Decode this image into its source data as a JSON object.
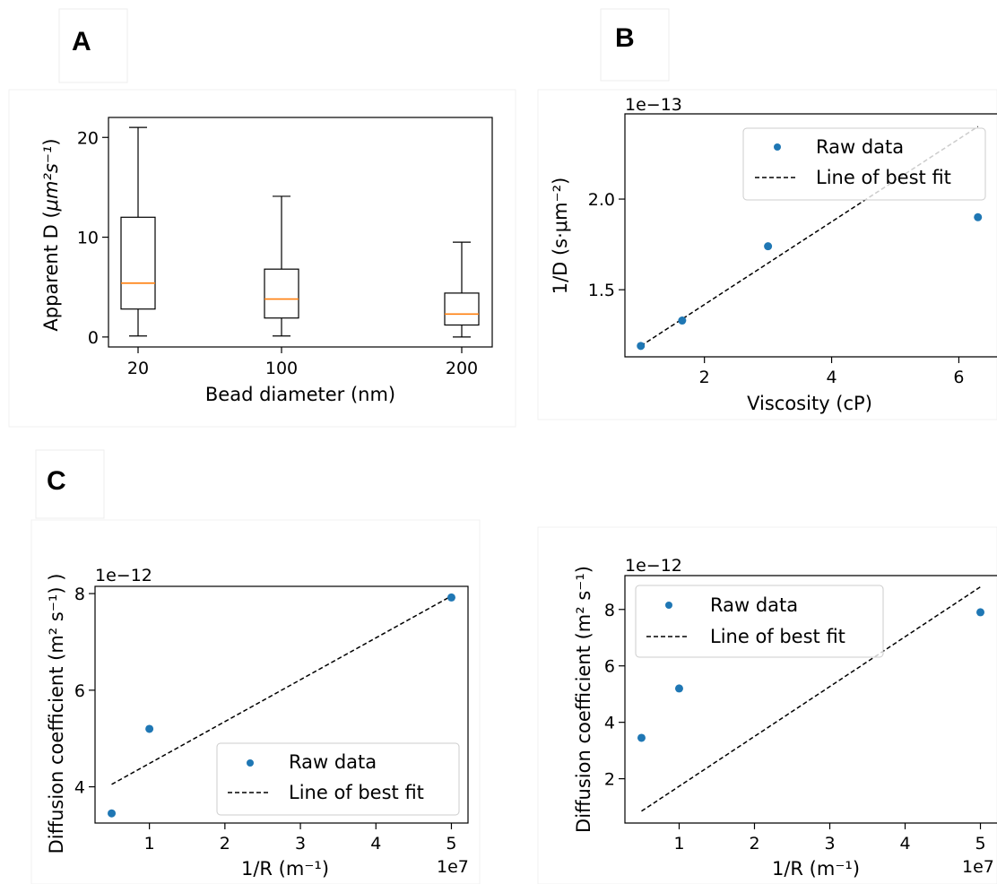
{
  "panels": {
    "a": {
      "letter": "A"
    },
    "b": {
      "letter": "B"
    },
    "c": {
      "letter": "C"
    }
  },
  "colors": {
    "point": "#1f77b4",
    "median": "#ff7f0e",
    "fit_line": "#000000"
  },
  "chart_data": [
    {
      "id": "A",
      "type": "box",
      "categories": [
        "20",
        "100",
        "200"
      ],
      "boxes": [
        {
          "whislo": 0.1,
          "q1": 2.8,
          "med": 5.4,
          "q3": 12.0,
          "whishi": 21.0
        },
        {
          "whislo": 0.1,
          "q1": 1.9,
          "med": 3.8,
          "q3": 6.8,
          "whishi": 14.1
        },
        {
          "whislo": 0.0,
          "q1": 1.2,
          "med": 2.3,
          "q3": 4.4,
          "whishi": 9.5
        }
      ],
      "xlabel": "Bead diameter (nm)",
      "ylabel_prefix": "Apparent D (",
      "ylabel_math": "μm²s⁻¹",
      "ylabel_suffix": ")",
      "yticks": [
        "0",
        "10",
        "20"
      ],
      "ytick_values": [
        0,
        10,
        20
      ],
      "ylim": [
        -1,
        22
      ],
      "grid": false
    },
    {
      "id": "B",
      "type": "scatter",
      "x": [
        1.0,
        1.65,
        3.0,
        6.3
      ],
      "y": [
        1.19,
        1.33,
        1.74,
        1.9
      ],
      "fit": {
        "x": [
          1.0,
          6.3
        ],
        "y": [
          1.19,
          2.4
        ]
      },
      "offset_text": "1e−13",
      "xlabel": "Viscosity (cP)",
      "ylabel": "1/D (s·μm⁻²)",
      "xticks": [
        "2",
        "4",
        "6"
      ],
      "xtick_values": [
        2,
        4,
        6
      ],
      "yticks": [
        "1.5",
        "2.0"
      ],
      "ytick_values": [
        1.5,
        2.0
      ],
      "xlim": [
        0.75,
        6.6
      ],
      "ylim": [
        1.13,
        2.47
      ],
      "legend": {
        "position": "upper right",
        "entries": [
          "Raw data",
          "Line of best fit"
        ]
      },
      "grid": false
    },
    {
      "id": "C1",
      "type": "scatter",
      "x": [
        0.5,
        1.0,
        5.0
      ],
      "y": [
        3.45,
        5.2,
        7.92
      ],
      "fit": {
        "x": [
          0.5,
          5.0
        ],
        "y": [
          4.05,
          7.95
        ]
      },
      "offset_text": "1e−12",
      "x_offset_text": "1e7",
      "xlabel": "1/R (m⁻¹)",
      "ylabel": "Diffusion coefficient (m² s⁻¹) )",
      "xticks": [
        "1",
        "2",
        "3",
        "4",
        "5"
      ],
      "xtick_values": [
        1,
        2,
        3,
        4,
        5
      ],
      "yticks": [
        "4",
        "6",
        "8"
      ],
      "ytick_values": [
        4,
        6,
        8
      ],
      "xlim": [
        0.28,
        5.22
      ],
      "ylim": [
        3.25,
        8.15
      ],
      "legend": {
        "position": "lower right",
        "entries": [
          "Raw data",
          "Line of best fit"
        ]
      },
      "grid": false
    },
    {
      "id": "C2",
      "type": "scatter",
      "x": [
        0.5,
        1.0,
        5.0
      ],
      "y": [
        3.45,
        5.2,
        7.9
      ],
      "fit": {
        "x": [
          0.5,
          5.0
        ],
        "y": [
          0.85,
          8.8
        ]
      },
      "offset_text": "1e−12",
      "x_offset_text": "1e7",
      "xlabel": "1/R (m⁻¹)",
      "ylabel": "Diffusion coefficient (m² s⁻¹)",
      "xticks": [
        "1",
        "2",
        "3",
        "4",
        "5"
      ],
      "xtick_values": [
        1,
        2,
        3,
        4,
        5
      ],
      "yticks": [
        "2",
        "4",
        "6",
        "8"
      ],
      "ytick_values": [
        2,
        4,
        6,
        8
      ],
      "xlim": [
        0.28,
        5.22
      ],
      "ylim": [
        0.43,
        9.2
      ],
      "legend": {
        "position": "upper left",
        "entries": [
          "Raw data",
          "Line of best fit"
        ]
      },
      "grid": false
    }
  ]
}
